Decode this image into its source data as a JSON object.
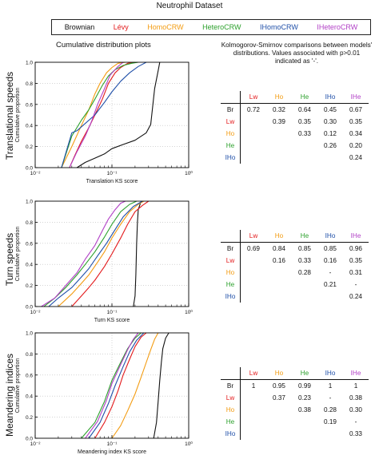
{
  "title": "Neutrophil Dataset",
  "legend": [
    {
      "label": "Brownian",
      "color": "#111111"
    },
    {
      "label": "Lévy",
      "color": "#e31a1c"
    },
    {
      "label": "HomoCRW",
      "color": "#f39c12"
    },
    {
      "label": "HeteroCRW",
      "color": "#2ca02c"
    },
    {
      "label": "IHomoCRW",
      "color": "#1f4fa8"
    },
    {
      "label": "IHeteroCRW",
      "color": "#b13fc6"
    }
  ],
  "left_heading": "Cumulative distribution plots",
  "right_heading": [
    "Kolmogorov-Smirnov comparisons between models'",
    "distributions. Values associated with p>0.01",
    "indicated as '-'."
  ],
  "row_labels": [
    "Translational speeds",
    "Turn speeds",
    "Meandering indices"
  ],
  "tables": [
    {
      "headers": [
        "Lw",
        "Ho",
        "He",
        "IHo",
        "IHe"
      ],
      "header_colors": [
        "#e31a1c",
        "#f39c12",
        "#2ca02c",
        "#1f4fa8",
        "#b13fc6"
      ],
      "rows": [
        {
          "label": "Br",
          "color": "#111111",
          "cells": [
            "0.72",
            "0.32",
            "0.64",
            "0.45",
            "0.67"
          ]
        },
        {
          "label": "Lw",
          "color": "#e31a1c",
          "cells": [
            "",
            "0.39",
            "0.35",
            "0.30",
            "0.35"
          ]
        },
        {
          "label": "Ho",
          "color": "#f39c12",
          "cells": [
            "",
            "",
            "0.33",
            "0.12",
            "0.34"
          ]
        },
        {
          "label": "He",
          "color": "#2ca02c",
          "cells": [
            "",
            "",
            "",
            "0.26",
            "0.20"
          ]
        },
        {
          "label": "IHo",
          "color": "#1f4fa8",
          "cells": [
            "",
            "",
            "",
            "",
            "0.24"
          ]
        }
      ]
    },
    {
      "headers": [
        "Lw",
        "Ho",
        "He",
        "IHo",
        "IHe"
      ],
      "header_colors": [
        "#e31a1c",
        "#f39c12",
        "#2ca02c",
        "#1f4fa8",
        "#b13fc6"
      ],
      "rows": [
        {
          "label": "Br",
          "color": "#111111",
          "cells": [
            "0.69",
            "0.84",
            "0.85",
            "0.85",
            "0.96"
          ]
        },
        {
          "label": "Lw",
          "color": "#e31a1c",
          "cells": [
            "",
            "0.16",
            "0.33",
            "0.16",
            "0.35"
          ]
        },
        {
          "label": "Ho",
          "color": "#f39c12",
          "cells": [
            "",
            "",
            "0.28",
            "-",
            "0.31"
          ]
        },
        {
          "label": "He",
          "color": "#2ca02c",
          "cells": [
            "",
            "",
            "",
            "0.21",
            "-"
          ]
        },
        {
          "label": "IHo",
          "color": "#1f4fa8",
          "cells": [
            "",
            "",
            "",
            "",
            "0.24"
          ]
        }
      ]
    },
    {
      "headers": [
        "Lw",
        "Ho",
        "He",
        "IHo",
        "IHe"
      ],
      "header_colors": [
        "#e31a1c",
        "#f39c12",
        "#2ca02c",
        "#1f4fa8",
        "#b13fc6"
      ],
      "rows": [
        {
          "label": "Br",
          "color": "#111111",
          "cells": [
            "1",
            "0.95",
            "0.99",
            "1",
            "1"
          ]
        },
        {
          "label": "Lw",
          "color": "#e31a1c",
          "cells": [
            "",
            "0.37",
            "0.23",
            "-",
            "0.38"
          ]
        },
        {
          "label": "Ho",
          "color": "#f39c12",
          "cells": [
            "",
            "",
            "0.38",
            "0.28",
            "0.30"
          ]
        },
        {
          "label": "He",
          "color": "#2ca02c",
          "cells": [
            "",
            "",
            "",
            "0.19",
            "-"
          ]
        },
        {
          "label": "IHo",
          "color": "#1f4fa8",
          "cells": [
            "",
            "",
            "",
            "",
            "0.33"
          ]
        }
      ]
    }
  ],
  "chart_data": [
    {
      "type": "line",
      "xscale": "log",
      "xlim": [
        0.01,
        1
      ],
      "ylim": [
        0,
        1.0
      ],
      "xlabel": "Translation KS score",
      "ylabel": "Cumulative proportion",
      "xticks": [
        "10⁻²",
        "10⁻¹",
        "10⁰"
      ],
      "yticks": [
        "0.0",
        "0.2",
        "0.4",
        "0.6",
        "0.8",
        "1.0"
      ],
      "series": [
        {
          "name": "Brownian",
          "color": "#111111",
          "x": [
            0.035,
            0.045,
            0.06,
            0.08,
            0.1,
            0.14,
            0.2,
            0.28,
            0.32,
            0.33,
            0.36,
            0.4,
            0.42
          ],
          "y": [
            0,
            0.05,
            0.09,
            0.13,
            0.18,
            0.22,
            0.26,
            0.33,
            0.41,
            0.5,
            0.75,
            0.92,
            1.0
          ]
        },
        {
          "name": "Lévy",
          "color": "#e31a1c",
          "x": [
            0.028,
            0.033,
            0.04,
            0.05,
            0.06,
            0.075,
            0.09,
            0.11,
            0.13,
            0.16,
            0.2
          ],
          "y": [
            0,
            0.12,
            0.25,
            0.38,
            0.5,
            0.65,
            0.8,
            0.9,
            0.95,
            0.99,
            1.0
          ]
        },
        {
          "name": "HomoCRW",
          "color": "#f39c12",
          "x": [
            0.022,
            0.03,
            0.04,
            0.05,
            0.06,
            0.07,
            0.085,
            0.1,
            0.12,
            0.15
          ],
          "y": [
            0,
            0.2,
            0.4,
            0.55,
            0.7,
            0.8,
            0.9,
            0.95,
            0.99,
            1.0
          ]
        },
        {
          "name": "HeteroCRW",
          "color": "#2ca02c",
          "x": [
            0.022,
            0.03,
            0.04,
            0.05,
            0.06,
            0.075,
            0.09,
            0.11,
            0.14,
            0.18,
            0.22
          ],
          "y": [
            0,
            0.3,
            0.45,
            0.55,
            0.65,
            0.78,
            0.87,
            0.93,
            0.97,
            0.99,
            1.0
          ]
        },
        {
          "name": "IHomoCRW",
          "color": "#1f4fa8",
          "x": [
            0.022,
            0.03,
            0.035,
            0.045,
            0.06,
            0.08,
            0.1,
            0.13,
            0.17,
            0.22,
            0.28
          ],
          "y": [
            0,
            0.33,
            0.35,
            0.42,
            0.5,
            0.62,
            0.72,
            0.82,
            0.9,
            0.96,
            1.0
          ]
        },
        {
          "name": "IHeteroCRW",
          "color": "#b13fc6",
          "x": [
            0.028,
            0.035,
            0.045,
            0.055,
            0.065,
            0.08,
            0.095,
            0.12,
            0.14
          ],
          "y": [
            0,
            0.15,
            0.3,
            0.45,
            0.6,
            0.75,
            0.88,
            0.96,
            1.0
          ]
        }
      ]
    },
    {
      "type": "line",
      "xscale": "log",
      "xlim": [
        0.01,
        1
      ],
      "ylim": [
        0,
        1.0
      ],
      "xlabel": "Turn KS score",
      "ylabel": "Cumulative proportion",
      "xticks": [
        "10⁻²",
        "10⁻¹",
        "10⁰"
      ],
      "yticks": [
        "0.0",
        "0.2",
        "0.4",
        "0.6",
        "0.8",
        "1.0"
      ],
      "series": [
        {
          "name": "Brownian",
          "color": "#111111",
          "x": [
            0.19,
            0.2,
            0.205,
            0.21,
            0.215,
            0.22,
            0.24
          ],
          "y": [
            0,
            0.1,
            0.3,
            0.6,
            0.8,
            0.92,
            1.0
          ]
        },
        {
          "name": "Lévy",
          "color": "#e31a1c",
          "x": [
            0.03,
            0.04,
            0.05,
            0.06,
            0.08,
            0.1,
            0.13,
            0.16,
            0.2,
            0.25,
            0.3
          ],
          "y": [
            0,
            0.1,
            0.18,
            0.25,
            0.38,
            0.5,
            0.65,
            0.78,
            0.9,
            0.96,
            1.0
          ]
        },
        {
          "name": "HomoCRW",
          "color": "#f39c12",
          "x": [
            0.02,
            0.03,
            0.04,
            0.05,
            0.065,
            0.08,
            0.1,
            0.13,
            0.17,
            0.22,
            0.26
          ],
          "y": [
            0,
            0.12,
            0.22,
            0.3,
            0.42,
            0.52,
            0.65,
            0.78,
            0.9,
            0.97,
            1.0
          ]
        },
        {
          "name": "HeteroCRW",
          "color": "#2ca02c",
          "x": [
            0.013,
            0.018,
            0.025,
            0.035,
            0.045,
            0.06,
            0.08,
            0.1,
            0.13,
            0.17,
            0.21
          ],
          "y": [
            0,
            0.08,
            0.18,
            0.3,
            0.4,
            0.52,
            0.66,
            0.78,
            0.9,
            0.97,
            1.0
          ]
        },
        {
          "name": "IHomoCRW",
          "color": "#1f4fa8",
          "x": [
            0.015,
            0.02,
            0.03,
            0.04,
            0.05,
            0.065,
            0.085,
            0.11,
            0.14,
            0.19,
            0.25
          ],
          "y": [
            0,
            0.08,
            0.18,
            0.28,
            0.36,
            0.48,
            0.6,
            0.73,
            0.85,
            0.95,
            1.0
          ]
        },
        {
          "name": "IHeteroCRW",
          "color": "#b13fc6",
          "x": [
            0.012,
            0.018,
            0.025,
            0.035,
            0.045,
            0.06,
            0.075,
            0.09,
            0.11,
            0.13,
            0.15
          ],
          "y": [
            0,
            0.08,
            0.2,
            0.32,
            0.45,
            0.58,
            0.72,
            0.83,
            0.92,
            0.98,
            1.0
          ]
        }
      ]
    },
    {
      "type": "line",
      "xscale": "log",
      "xlim": [
        0.01,
        1
      ],
      "ylim": [
        0,
        1.0
      ],
      "xlabel": "Meandering index KS score",
      "ylabel": "Cumulative proportion",
      "xticks": [
        "10⁻²",
        "10⁻¹",
        "10⁰"
      ],
      "yticks": [
        "0.0",
        "0.2",
        "0.4",
        "0.6",
        "0.8",
        "1.0"
      ],
      "series": [
        {
          "name": "Brownian",
          "color": "#111111",
          "x": [
            0.35,
            0.38,
            0.4,
            0.42,
            0.44,
            0.46,
            0.5,
            0.55
          ],
          "y": [
            0,
            0.15,
            0.35,
            0.55,
            0.72,
            0.85,
            0.95,
            1.0
          ]
        },
        {
          "name": "Lévy",
          "color": "#e31a1c",
          "x": [
            0.06,
            0.08,
            0.1,
            0.12,
            0.14,
            0.17,
            0.2,
            0.24,
            0.28
          ],
          "y": [
            0,
            0.15,
            0.3,
            0.45,
            0.6,
            0.75,
            0.87,
            0.96,
            1.0
          ]
        },
        {
          "name": "HomoCRW",
          "color": "#f39c12",
          "x": [
            0.1,
            0.13,
            0.16,
            0.2,
            0.24,
            0.28,
            0.32,
            0.36,
            0.4
          ],
          "y": [
            0,
            0.12,
            0.26,
            0.42,
            0.58,
            0.72,
            0.84,
            0.94,
            1.0
          ]
        },
        {
          "name": "HeteroCRW",
          "color": "#2ca02c",
          "x": [
            0.04,
            0.06,
            0.08,
            0.1,
            0.13,
            0.16,
            0.2,
            0.24
          ],
          "y": [
            0,
            0.15,
            0.35,
            0.55,
            0.72,
            0.85,
            0.95,
            1.0
          ]
        },
        {
          "name": "IHomoCRW",
          "color": "#1f4fa8",
          "x": [
            0.05,
            0.07,
            0.09,
            0.11,
            0.14,
            0.17,
            0.21,
            0.26
          ],
          "y": [
            0,
            0.15,
            0.33,
            0.5,
            0.68,
            0.82,
            0.93,
            1.0
          ]
        },
        {
          "name": "IHeteroCRW",
          "color": "#b13fc6",
          "x": [
            0.045,
            0.065,
            0.085,
            0.1,
            0.13,
            0.16,
            0.19,
            0.22
          ],
          "y": [
            0,
            0.16,
            0.36,
            0.52,
            0.7,
            0.84,
            0.94,
            1.0
          ]
        }
      ]
    }
  ]
}
